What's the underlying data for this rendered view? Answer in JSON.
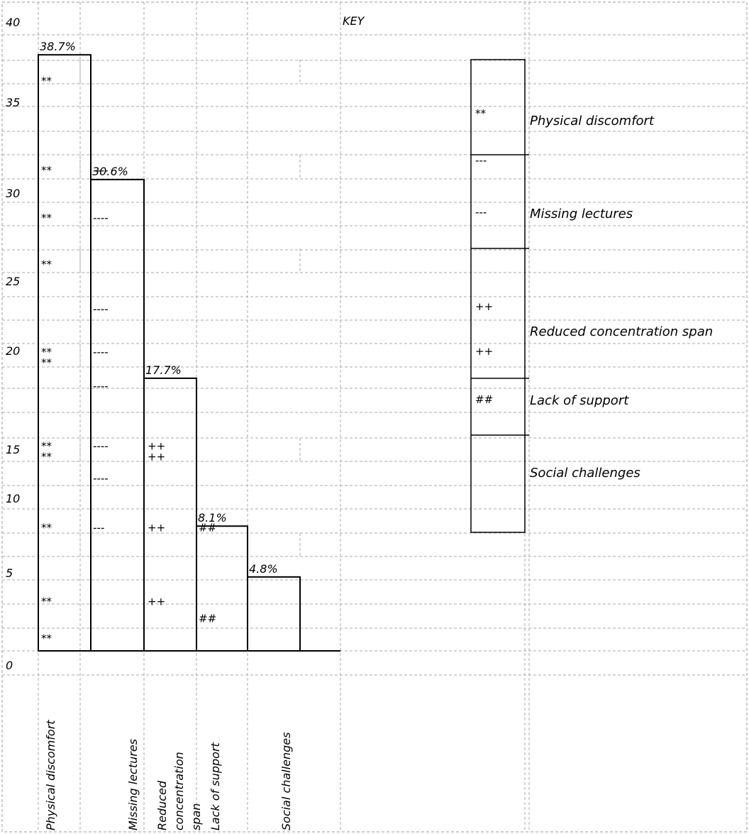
{
  "chart_data": {
    "type": "bar",
    "categories": [
      "Physical discomfort",
      "Missing lectures",
      "Reduced concentration span",
      "Lack of support",
      "Social challenges"
    ],
    "category_label_lines": [
      [
        "Physical discomfort"
      ],
      [
        "Missing lectures"
      ],
      [
        "Reduced",
        "concentration",
        "span"
      ],
      [
        "Lack of support"
      ],
      [
        "Social challenges"
      ]
    ],
    "values": [
      38.7,
      30.6,
      17.7,
      8.1,
      4.8
    ],
    "data_labels": [
      "38.7%",
      "30.6%",
      "17.7%",
      "8.1%",
      "4.8%"
    ],
    "y_ticks": [
      "0",
      "5",
      "10",
      "15",
      "20",
      "25",
      "30",
      "35",
      "40"
    ],
    "ylim": [
      0,
      40
    ],
    "grid": true,
    "key": {
      "title": "KEY",
      "items": [
        {
          "label": "Physical discomfort",
          "symbol": "**"
        },
        {
          "label": "Missing lectures",
          "symbol": "---"
        },
        {
          "label": "Reduced concentration span",
          "symbol": "++"
        },
        {
          "label": "Lack of support",
          "symbol": "##"
        },
        {
          "label": "Social challenges",
          "symbol": ""
        }
      ]
    },
    "bar_marks": [
      {
        "symbol": "**",
        "at": [
          37,
          31.2,
          28.1,
          25.1,
          19.4,
          18.7,
          13.3,
          12.6,
          8,
          3.2,
          0.8
        ]
      },
      {
        "symbol": "----",
        "at": [
          31.2,
          28.1,
          22.2,
          19.4,
          17.2,
          13.3,
          11.2
        ]
      },
      {
        "symbol": "---",
        "at": [
          8
        ]
      },
      {
        "symbol": "++",
        "at": [
          13.3,
          12.6,
          8,
          3.2
        ]
      },
      {
        "symbol": "##",
        "at": [
          8,
          2.1
        ]
      }
    ]
  }
}
